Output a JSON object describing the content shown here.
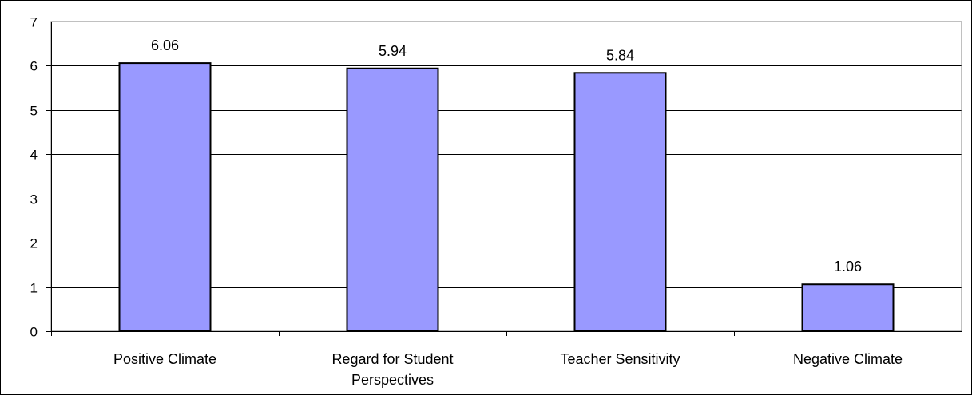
{
  "chart_data": {
    "type": "bar",
    "categories": [
      [
        "Positive Climate"
      ],
      [
        "Regard for Student",
        "Perspectives"
      ],
      [
        "Teacher Sensitivity"
      ],
      [
        "Negative Climate"
      ]
    ],
    "values": [
      6.06,
      5.94,
      5.84,
      1.06
    ],
    "data_labels": [
      "6.06",
      "5.94",
      "5.84",
      "1.06"
    ],
    "yticks": [
      "0",
      "1",
      "2",
      "3",
      "4",
      "5",
      "6",
      "7"
    ],
    "ylim": [
      0,
      7
    ],
    "grid": true,
    "legend": "none",
    "colors": {
      "bar_fill": "#9999ff",
      "bar_stroke": "#000000",
      "grid": "#000000",
      "plot_border": "#808080",
      "frame": "#000000"
    }
  }
}
